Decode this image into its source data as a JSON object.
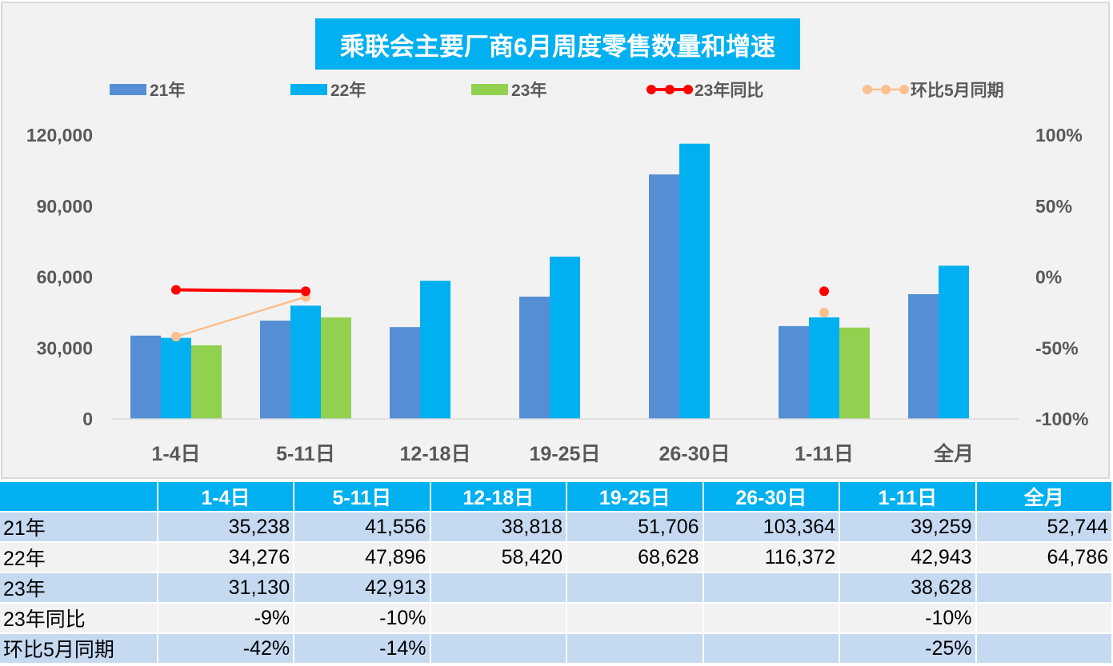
{
  "chart_data": {
    "type": "bar",
    "title": "乘联会主要厂商6月周度零售数量和增速",
    "categories": [
      "1-4日",
      "5-11日",
      "12-18日",
      "19-25日",
      "26-30日",
      "1-11日",
      "全月"
    ],
    "series": [
      {
        "name": "21年",
        "type": "bar",
        "axis": "left",
        "color": "#558ed5",
        "values": [
          35238,
          41556,
          38818,
          51706,
          103364,
          39259,
          52744
        ]
      },
      {
        "name": "22年",
        "type": "bar",
        "axis": "left",
        "color": "#00b0f0",
        "values": [
          34276,
          47896,
          58420,
          68628,
          116372,
          42943,
          64786
        ]
      },
      {
        "name": "23年",
        "type": "bar",
        "axis": "left",
        "color": "#92d050",
        "values": [
          31130,
          42913,
          null,
          null,
          null,
          38628,
          null
        ]
      },
      {
        "name": "23年同比",
        "type": "line",
        "axis": "right",
        "color": "#ff0000",
        "values": [
          -9,
          -10,
          null,
          null,
          null,
          -10,
          null
        ]
      },
      {
        "name": "环比5月同期",
        "type": "line",
        "axis": "right",
        "color": "#fac090",
        "values": [
          -42,
          -14,
          null,
          null,
          null,
          -25,
          null
        ]
      }
    ],
    "y_left": {
      "range": [
        0,
        120000
      ],
      "ticks": [
        "0",
        "30,000",
        "60,000",
        "90,000",
        "120,000"
      ]
    },
    "y_right": {
      "range": [
        -100,
        100
      ],
      "unit": "%",
      "ticks": [
        "-100%",
        "-50%",
        "0%",
        "50%",
        "100%"
      ]
    },
    "legend": "top",
    "grid": false
  },
  "table": {
    "header": [
      "",
      "1-4日",
      "5-11日",
      "12-18日",
      "19-25日",
      "26-30日",
      "1-11日",
      "全月"
    ],
    "rows": [
      [
        "21年",
        "35,238",
        "41,556",
        "38,818",
        "51,706",
        "103,364",
        "39,259",
        "52,744"
      ],
      [
        "22年",
        "34,276",
        "47,896",
        "58,420",
        "68,628",
        "116,372",
        "42,943",
        "64,786"
      ],
      [
        "23年",
        "31,130",
        "42,913",
        "",
        "",
        "",
        "38,628",
        ""
      ],
      [
        "23年同比",
        "-9%",
        "-10%",
        "",
        "",
        "",
        "-10%",
        ""
      ],
      [
        "环比5月同期",
        "-42%",
        "-14%",
        "",
        "",
        "",
        "-25%",
        ""
      ]
    ]
  }
}
